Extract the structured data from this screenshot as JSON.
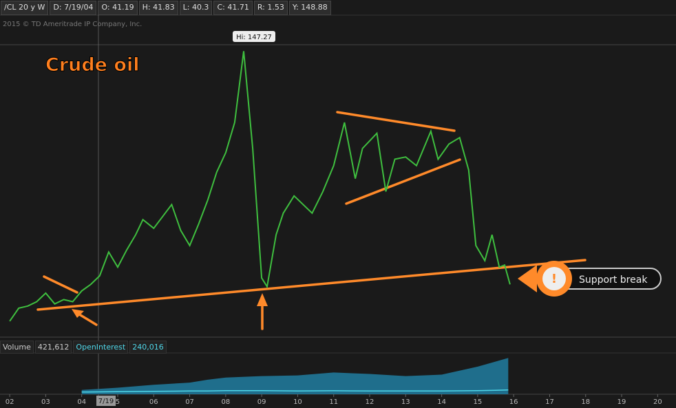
{
  "header": {
    "symbol": "/CL 20 y W",
    "date": "D: 7/19/04",
    "open": "O: 41.19",
    "high": "H: 41.83",
    "low": "L: 40.3",
    "close": "C: 41.71",
    "range": "R: 1.53",
    "y": "Y: 148.88"
  },
  "copyright": "2015 © TD Ameritrade IP Company, Inc.",
  "chart_data": {
    "type": "line",
    "title": "Crude oil",
    "annotation_high": "Hi: 147.27",
    "annotation_break": "Support break",
    "cursor_label": "7/19",
    "x": [
      2002.0,
      2002.25,
      2002.5,
      2002.75,
      2003.0,
      2003.25,
      2003.5,
      2003.75,
      2004.0,
      2004.25,
      2004.5,
      2004.75,
      2005.0,
      2005.25,
      2005.5,
      2005.7,
      2006.0,
      2006.5,
      2006.75,
      2007.0,
      2007.25,
      2007.5,
      2007.75,
      2008.0,
      2008.25,
      2008.5,
      2008.75,
      2009.0,
      2009.15,
      2009.4,
      2009.6,
      2009.9,
      2010.4,
      2010.7,
      2011.0,
      2011.3,
      2011.6,
      2011.8,
      2012.2,
      2012.45,
      2012.7,
      2013.0,
      2013.3,
      2013.7,
      2013.9,
      2014.2,
      2014.5,
      2014.75,
      2014.95,
      2015.2,
      2015.4,
      2015.6,
      2015.75,
      2015.9
    ],
    "series": [
      {
        "name": "Price",
        "color": "#3fbf3f",
        "values": [
          20,
          26,
          27,
          29,
          33,
          28,
          30,
          29,
          34,
          37,
          41,
          52,
          45,
          53,
          60,
          67,
          63,
          74,
          62,
          55,
          65,
          76,
          89,
          98,
          112,
          145,
          100,
          40,
          36,
          60,
          70,
          78,
          70,
          80,
          92,
          112,
          86,
          100,
          107,
          80,
          95,
          96,
          92,
          108,
          95,
          102,
          105,
          90,
          55,
          48,
          60,
          45,
          46,
          37
        ]
      }
    ],
    "xlim": [
      2001.73,
      2020.51
    ],
    "ylim": [
      12.6,
      161.7
    ],
    "xticks": [
      {
        "value": 2002,
        "label": "02"
      },
      {
        "value": 2003,
        "label": "03"
      },
      {
        "value": 2004,
        "label": "04"
      },
      {
        "value": 2005,
        "label": "5"
      },
      {
        "value": 2006,
        "label": "06"
      },
      {
        "value": 2007,
        "label": "07"
      },
      {
        "value": 2008,
        "label": "08"
      },
      {
        "value": 2009,
        "label": "09"
      },
      {
        "value": 2010,
        "label": "10"
      },
      {
        "value": 2011,
        "label": "11"
      },
      {
        "value": 2012,
        "label": "12"
      },
      {
        "value": 2013,
        "label": "13"
      },
      {
        "value": 2014,
        "label": "14"
      },
      {
        "value": 2015,
        "label": "15"
      },
      {
        "value": 2016,
        "label": "16"
      },
      {
        "value": 2017,
        "label": "17"
      },
      {
        "value": 2018,
        "label": "18"
      },
      {
        "value": 2019,
        "label": "19"
      },
      {
        "value": 2020,
        "label": "20"
      }
    ],
    "volume": {
      "label": "Volume",
      "value_label": "421,612",
      "oi_label": "OpenInterest",
      "oi_value_label": "240,016",
      "x": [
        2004.0,
        2005.0,
        2006.0,
        2007.0,
        2007.5,
        2008.0,
        2009.0,
        2010.0,
        2011.0,
        2012.0,
        2013.0,
        2014.0,
        2015.0,
        2015.5,
        2015.85
      ],
      "values": [
        60000,
        90000,
        130000,
        160000,
        200000,
        230000,
        250000,
        260000,
        300000,
        280000,
        250000,
        270000,
        380000,
        450000,
        500000
      ],
      "oi_values": [
        30000,
        35000,
        40000,
        45000,
        45000,
        50000,
        50000,
        45000,
        48000,
        45000,
        45000,
        45000,
        50000,
        55000,
        60000
      ],
      "color": "#1f6e8c",
      "oi_color": "#4fd6e8",
      "ylim": [
        0,
        550000
      ]
    }
  }
}
